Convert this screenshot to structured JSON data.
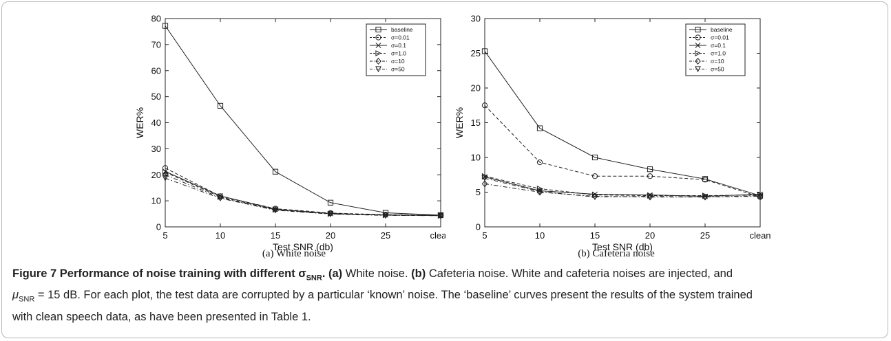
{
  "chart_data": [
    {
      "type": "line",
      "categories": [
        "5",
        "10",
        "15",
        "20",
        "25",
        "clean"
      ],
      "xlabel": "Test SNR (db)",
      "ylabel": "WER%",
      "ylim": [
        0,
        80
      ],
      "yticks": [
        0,
        10,
        20,
        30,
        40,
        50,
        60,
        70,
        80
      ],
      "legend_position": "top-right",
      "series": [
        {
          "name": "baseline",
          "marker": "square",
          "dash": "solid",
          "values": [
            77.2,
            46.5,
            21.2,
            9.3,
            5.4,
            4.5
          ]
        },
        {
          "name": "σ=0.01",
          "marker": "circle",
          "dash": "dashed",
          "values": [
            22.6,
            11.8,
            7.0,
            5.3,
            4.7,
            4.4
          ]
        },
        {
          "name": "σ=0.1",
          "marker": "x",
          "dash": "solid",
          "values": [
            21.3,
            11.9,
            6.8,
            5.1,
            4.6,
            4.4
          ]
        },
        {
          "name": "σ=1.0",
          "marker": "triangle-right",
          "dash": "dashed",
          "values": [
            21.0,
            11.5,
            6.6,
            5.0,
            4.5,
            4.3
          ]
        },
        {
          "name": "σ=10",
          "marker": "diamond",
          "dash": "dashdot",
          "values": [
            20.0,
            11.2,
            6.6,
            5.2,
            4.5,
            4.3
          ]
        },
        {
          "name": "σ=50",
          "marker": "triangle-down",
          "dash": "dashdot",
          "values": [
            18.7,
            11.0,
            6.4,
            4.9,
            4.4,
            4.3
          ]
        }
      ],
      "sub_caption": "(a) White noise"
    },
    {
      "type": "line",
      "categories": [
        "5",
        "10",
        "15",
        "20",
        "25",
        "clean"
      ],
      "xlabel": "Test SNR (db)",
      "ylabel": "WER%",
      "ylim": [
        0,
        30
      ],
      "yticks": [
        0,
        5,
        10,
        15,
        20,
        25,
        30
      ],
      "legend_position": "top-right",
      "series": [
        {
          "name": "baseline",
          "marker": "square",
          "dash": "solid",
          "values": [
            25.3,
            14.2,
            10.0,
            8.3,
            6.9,
            4.5
          ]
        },
        {
          "name": "σ=0.01",
          "marker": "circle",
          "dash": "dashed",
          "values": [
            17.5,
            9.3,
            7.3,
            7.3,
            6.8,
            4.3
          ]
        },
        {
          "name": "σ=0.1",
          "marker": "x",
          "dash": "solid",
          "values": [
            7.2,
            5.2,
            4.7,
            4.6,
            4.4,
            4.7
          ]
        },
        {
          "name": "σ=1.0",
          "marker": "triangle-right",
          "dash": "dashed",
          "values": [
            7.3,
            5.5,
            4.6,
            4.5,
            4.5,
            4.6
          ]
        },
        {
          "name": "σ=10",
          "marker": "diamond",
          "dash": "dashdot",
          "values": [
            6.2,
            5.0,
            4.4,
            4.3,
            4.3,
            4.4
          ]
        },
        {
          "name": "σ=50",
          "marker": "triangle-down",
          "dash": "dashdot",
          "values": [
            7.0,
            5.1,
            4.3,
            4.4,
            4.3,
            4.5
          ]
        }
      ],
      "sub_caption": "(b) Cafeteria noise"
    }
  ],
  "caption": {
    "label": "Figure 7 Performance of noise training with different σ",
    "label_sub": "SNR",
    "label_end": ".",
    "part_a_label": "(a)",
    "part_a_text": " White noise. ",
    "part_b_label": "(b)",
    "part_b_text": " Cafeteria noise. White and cafeteria noises are injected, and",
    "line2_mu": "μ",
    "line2_sub": "SNR",
    "line2_text": " = 15 dB. For each plot, the test data are corrupted by a particular ‘known’ noise. The ‘baseline’ curves present the results of the system trained",
    "line3_text": "with clean speech data, as have been presented in Table 1."
  }
}
